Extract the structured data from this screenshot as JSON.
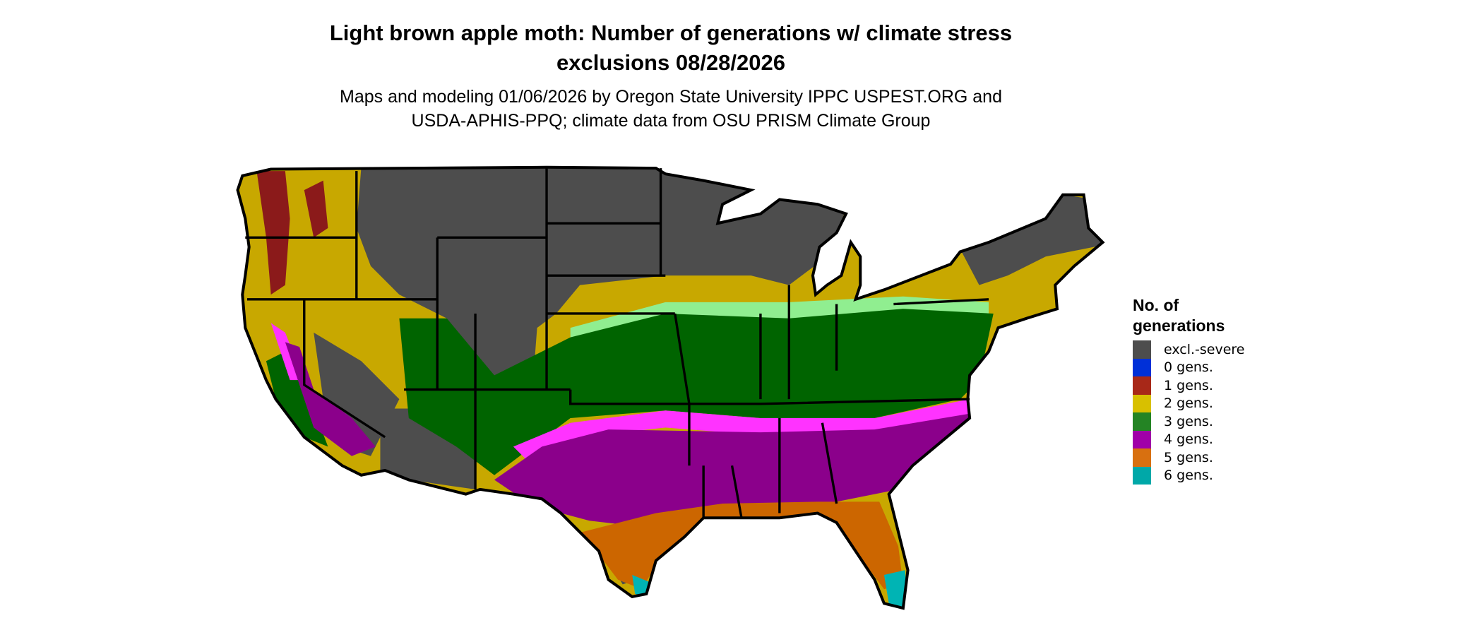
{
  "title": {
    "line1": "Light brown apple moth: Number of generations w/ climate stress",
    "line2": "exclusions 08/28/2026"
  },
  "subtitle": {
    "line1": "Maps and modeling 01/06/2026 by Oregon State University IPPC USPEST.ORG and",
    "line2": "USDA-APHIS-PPQ; climate data from OSU PRISM Climate Group"
  },
  "legend": {
    "title_line1": "No. of",
    "title_line2": "generations",
    "items": [
      {
        "label": "excl.-severe",
        "color": "#4d4d4d"
      },
      {
        "label": "0 gens.",
        "color": "#0030d8"
      },
      {
        "label": "1 gens.",
        "color": "#a82818"
      },
      {
        "label": "2 gens.",
        "color": "#d8c000"
      },
      {
        "label": "3 gens.",
        "color": "#248424"
      },
      {
        "label": "4 gens.",
        "color": "#a000a8"
      },
      {
        "label": "5 gens.",
        "color": "#d87010"
      },
      {
        "label": "6 gens.",
        "color": "#00a8a8"
      }
    ]
  },
  "map": {
    "region": "Contiguous United States",
    "colors": {
      "excluded": "#4d4d4d",
      "gen1": "#8b1a1a",
      "gen2": "#c8a800",
      "gen3": "#006400",
      "gen3_light": "#90ee90",
      "gen4_edge": "#ff33ff",
      "gen4": "#8b008b",
      "gen5": "#cc6600",
      "gen6": "#00b4b4"
    }
  }
}
